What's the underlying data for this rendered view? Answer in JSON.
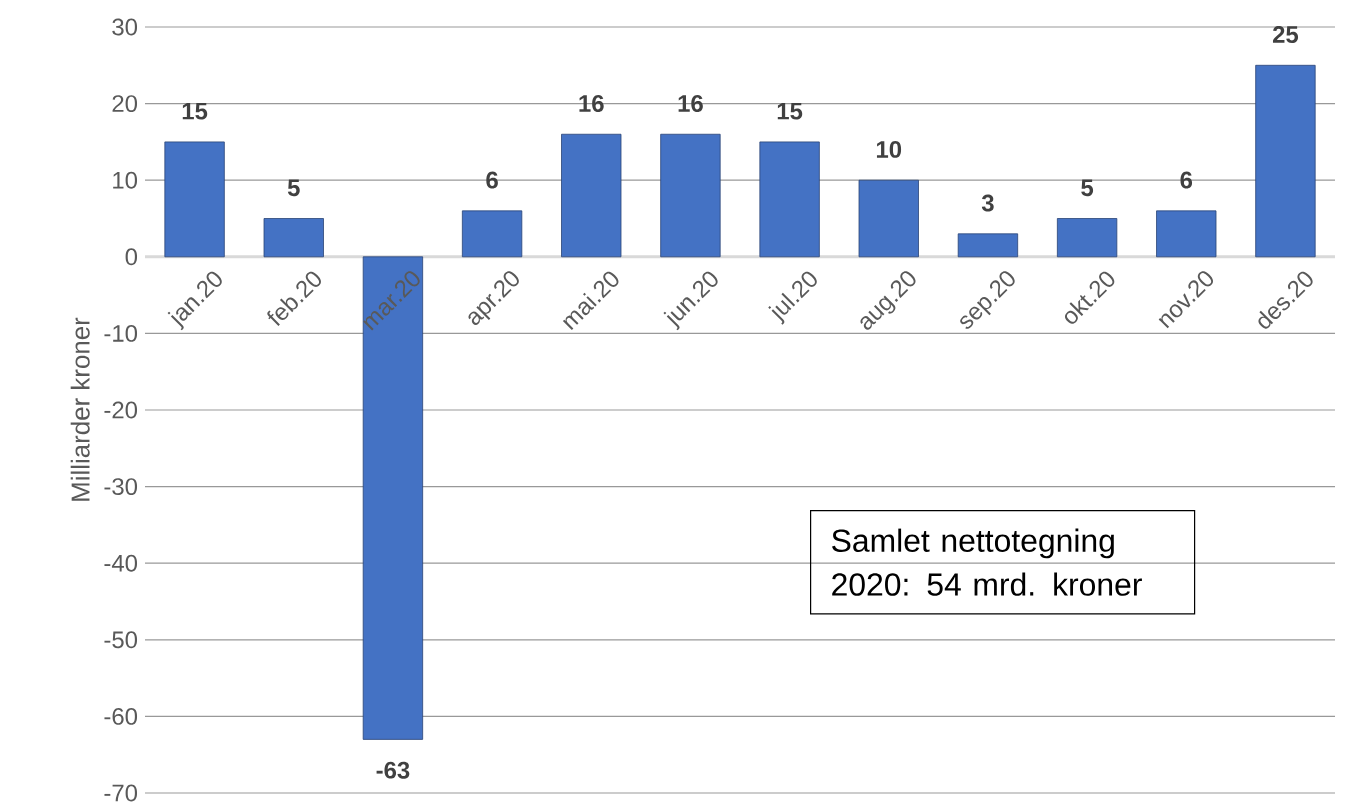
{
  "chart_data": {
    "type": "bar",
    "ylabel": "Milliarder kroner",
    "categories": [
      "jan.20",
      "feb.20",
      "mar.20",
      "apr.20",
      "mai.20",
      "jun.20",
      "jul.20",
      "aug.20",
      "sep.20",
      "okt.20",
      "nov.20",
      "des.20"
    ],
    "values": [
      15,
      5,
      -63,
      6,
      16,
      16,
      15,
      10,
      3,
      5,
      6,
      25
    ],
    "color": "#4472c4",
    "ylim": [
      -70,
      30
    ],
    "yticks": [
      -70,
      -60,
      -50,
      -40,
      -30,
      -20,
      -10,
      0,
      10,
      20,
      30
    ],
    "grid": "y",
    "data_labels": true,
    "annotations": [
      "Samlet nettotegning 2020: 54 mrd. kroner"
    ]
  }
}
